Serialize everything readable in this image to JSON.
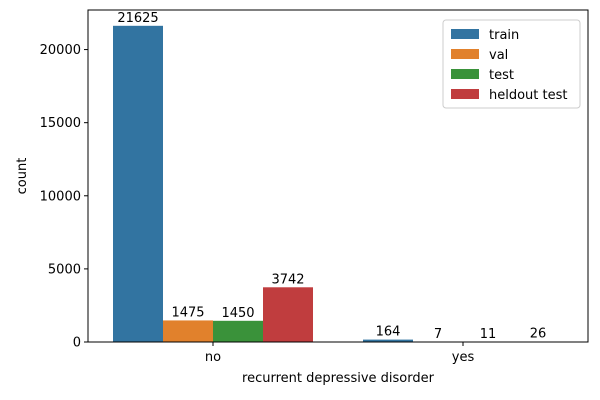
{
  "chart_data": {
    "type": "bar",
    "xlabel": "recurrent depressive disorder",
    "ylabel": "count",
    "categories": [
      "no",
      "yes"
    ],
    "ylim": [
      0,
      22706
    ],
    "yticks": [
      0,
      5000,
      10000,
      15000,
      20000
    ],
    "grid": false,
    "legend_position": "top-right",
    "series": [
      {
        "name": "train",
        "color": "#3274a1",
        "values": [
          21625,
          164
        ]
      },
      {
        "name": "val",
        "color": "#e1812c",
        "values": [
          1475,
          7
        ]
      },
      {
        "name": "test",
        "color": "#3a923a",
        "values": [
          1450,
          11
        ]
      },
      {
        "name": "heldout test",
        "color": "#c03d3e",
        "values": [
          3742,
          26
        ]
      }
    ]
  }
}
